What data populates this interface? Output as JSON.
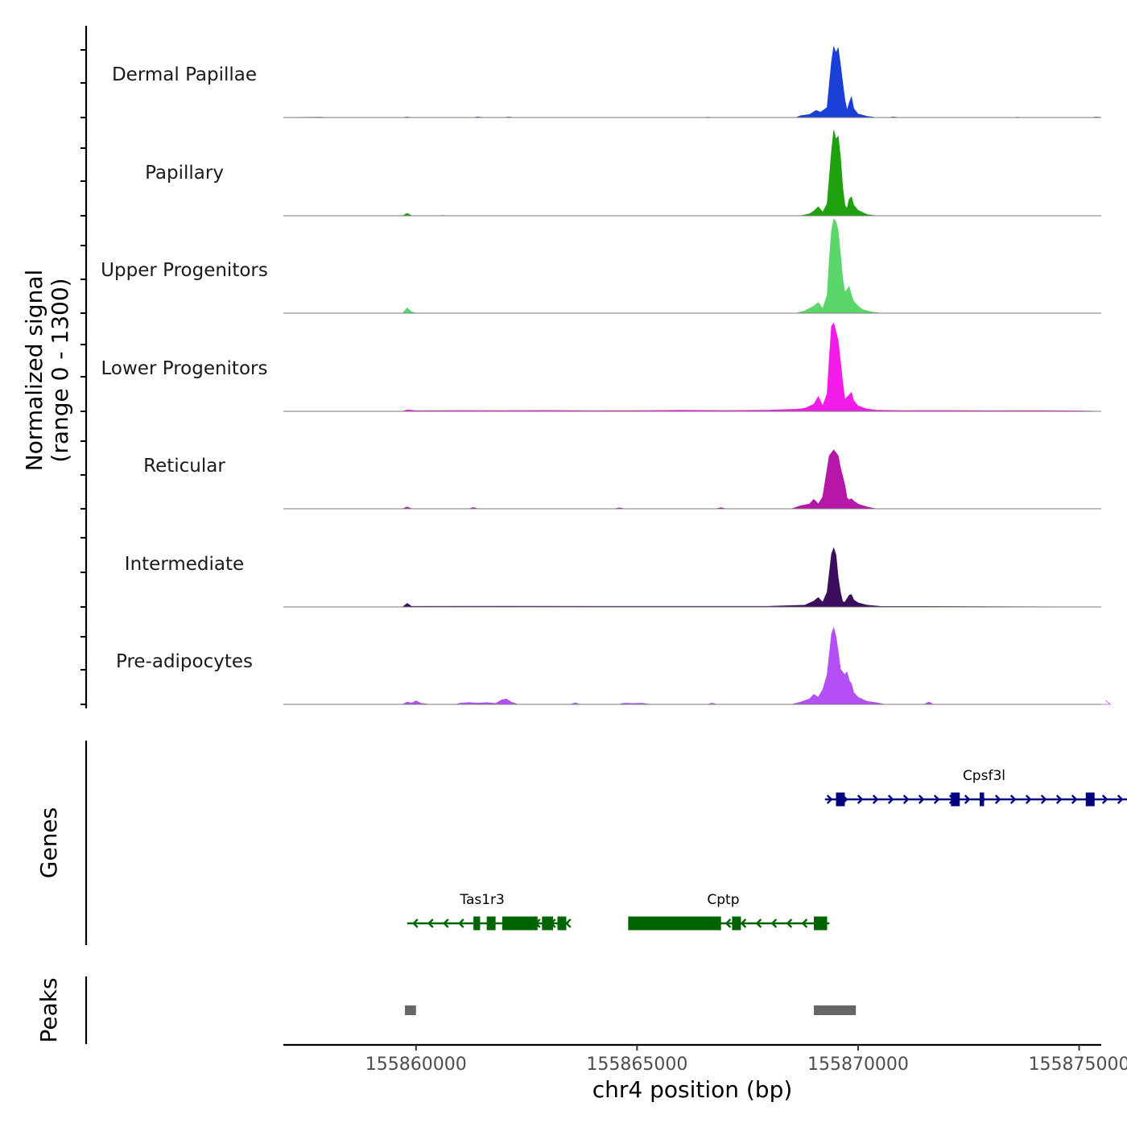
{
  "chart_data": {
    "type": "area",
    "title": "",
    "xlabel": "chr4 position (bp)",
    "xlim": [
      155857000,
      155875500
    ],
    "xticks": [
      155860000,
      155865000,
      155870000,
      155875000
    ],
    "xtick_labels": [
      "155860000",
      "155865000",
      "155870000",
      "155875000"
    ],
    "signal_ylabel_line1": "Normalized signal",
    "signal_ylabel_line2": "(range 0 - 1300)",
    "signal_ylim": [
      0,
      1300
    ],
    "genes_label": "Genes",
    "peaks_label": "Peaks",
    "tracks": [
      {
        "name": "Dermal Papillae",
        "color": "#1a3fd6",
        "points": [
          [
            155857000,
            0
          ],
          [
            155857850,
            5
          ],
          [
            155858000,
            0
          ],
          [
            155859700,
            0
          ],
          [
            155859800,
            8
          ],
          [
            155859900,
            0
          ],
          [
            155861300,
            0
          ],
          [
            155861400,
            10
          ],
          [
            155861500,
            0
          ],
          [
            155862000,
            0
          ],
          [
            155862100,
            8
          ],
          [
            155862200,
            0
          ],
          [
            155866500,
            0
          ],
          [
            155866600,
            6
          ],
          [
            155866700,
            0
          ],
          [
            155868600,
            0
          ],
          [
            155868700,
            30
          ],
          [
            155868900,
            50
          ],
          [
            155869050,
            120
          ],
          [
            155869150,
            90
          ],
          [
            155869300,
            170
          ],
          [
            155869400,
            950
          ],
          [
            155869450,
            1200
          ],
          [
            155869500,
            1100
          ],
          [
            155869550,
            1180
          ],
          [
            155869600,
            900
          ],
          [
            155869650,
            600
          ],
          [
            155869700,
            300
          ],
          [
            155869750,
            120
          ],
          [
            155869800,
            250
          ],
          [
            155869850,
            350
          ],
          [
            155869900,
            150
          ],
          [
            155870000,
            60
          ],
          [
            155870200,
            20
          ],
          [
            155870400,
            0
          ],
          [
            155870700,
            0
          ],
          [
            155870800,
            10
          ],
          [
            155870900,
            0
          ],
          [
            155873500,
            0
          ],
          [
            155873600,
            6
          ],
          [
            155873700,
            0
          ],
          [
            155875300,
            0
          ],
          [
            155875400,
            8
          ],
          [
            155875500,
            0
          ]
        ]
      },
      {
        "name": "Papillary",
        "color": "#1fa00f",
        "points": [
          [
            155857000,
            0
          ],
          [
            155859700,
            0
          ],
          [
            155859800,
            40
          ],
          [
            155859900,
            0
          ],
          [
            155860500,
            0
          ],
          [
            155860600,
            6
          ],
          [
            155860700,
            0
          ],
          [
            155868700,
            0
          ],
          [
            155868900,
            30
          ],
          [
            155869000,
            80
          ],
          [
            155869100,
            150
          ],
          [
            155869200,
            60
          ],
          [
            155869300,
            200
          ],
          [
            155869400,
            1100
          ],
          [
            155869450,
            1450
          ],
          [
            155869500,
            1300
          ],
          [
            155869550,
            1350
          ],
          [
            155869600,
            1000
          ],
          [
            155869650,
            500
          ],
          [
            155869700,
            180
          ],
          [
            155869750,
            120
          ],
          [
            155869800,
            280
          ],
          [
            155869850,
            320
          ],
          [
            155869900,
            180
          ],
          [
            155870000,
            90
          ],
          [
            155870200,
            20
          ],
          [
            155870400,
            0
          ],
          [
            155875500,
            0
          ]
        ]
      },
      {
        "name": "Upper Progenitors",
        "color": "#5bd66b",
        "points": [
          [
            155857000,
            0
          ],
          [
            155859700,
            0
          ],
          [
            155859800,
            90
          ],
          [
            155859900,
            20
          ],
          [
            155860000,
            0
          ],
          [
            155868600,
            0
          ],
          [
            155868800,
            40
          ],
          [
            155869000,
            120
          ],
          [
            155869100,
            180
          ],
          [
            155869200,
            80
          ],
          [
            155869300,
            300
          ],
          [
            155869350,
            900
          ],
          [
            155869400,
            1400
          ],
          [
            155869450,
            1600
          ],
          [
            155869500,
            1550
          ],
          [
            155869550,
            1400
          ],
          [
            155869600,
            1000
          ],
          [
            155869650,
            600
          ],
          [
            155869700,
            350
          ],
          [
            155869800,
            450
          ],
          [
            155869850,
            300
          ],
          [
            155869900,
            200
          ],
          [
            155870000,
            120
          ],
          [
            155870100,
            60
          ],
          [
            155870300,
            20
          ],
          [
            155870500,
            0
          ],
          [
            155875500,
            0
          ]
        ]
      },
      {
        "name": "Lower Progenitors",
        "color": "#f21be8",
        "points": [
          [
            155857000,
            0
          ],
          [
            155859700,
            0
          ],
          [
            155859800,
            25
          ],
          [
            155860000,
            10
          ],
          [
            155861000,
            14
          ],
          [
            155862000,
            12
          ],
          [
            155863000,
            15
          ],
          [
            155864000,
            10
          ],
          [
            155865000,
            12
          ],
          [
            155866000,
            18
          ],
          [
            155867000,
            14
          ],
          [
            155868000,
            20
          ],
          [
            155868600,
            35
          ],
          [
            155868800,
            50
          ],
          [
            155869000,
            120
          ],
          [
            155869100,
            250
          ],
          [
            155869200,
            90
          ],
          [
            155869300,
            300
          ],
          [
            155869350,
            900
          ],
          [
            155869400,
            1450
          ],
          [
            155869450,
            1500
          ],
          [
            155869500,
            1350
          ],
          [
            155869550,
            1200
          ],
          [
            155869600,
            850
          ],
          [
            155869650,
            500
          ],
          [
            155869700,
            200
          ],
          [
            155869800,
            280
          ],
          [
            155869850,
            320
          ],
          [
            155869900,
            180
          ],
          [
            155870000,
            90
          ],
          [
            155870200,
            40
          ],
          [
            155870400,
            20
          ],
          [
            155871000,
            12
          ],
          [
            155872000,
            14
          ],
          [
            155873000,
            10
          ],
          [
            155874000,
            12
          ],
          [
            155875000,
            8
          ],
          [
            155875500,
            0
          ]
        ]
      },
      {
        "name": "Reticular",
        "color": "#b617a8",
        "points": [
          [
            155857000,
            0
          ],
          [
            155859700,
            0
          ],
          [
            155859800,
            30
          ],
          [
            155859900,
            0
          ],
          [
            155861200,
            0
          ],
          [
            155861300,
            20
          ],
          [
            155861400,
            0
          ],
          [
            155864500,
            0
          ],
          [
            155864600,
            15
          ],
          [
            155864700,
            0
          ],
          [
            155866800,
            0
          ],
          [
            155866900,
            18
          ],
          [
            155867000,
            0
          ],
          [
            155868500,
            0
          ],
          [
            155868700,
            50
          ],
          [
            155868900,
            80
          ],
          [
            155869000,
            160
          ],
          [
            155869100,
            80
          ],
          [
            155869200,
            200
          ],
          [
            155869350,
            900
          ],
          [
            155869450,
            1000
          ],
          [
            155869500,
            950
          ],
          [
            155869550,
            900
          ],
          [
            155869600,
            700
          ],
          [
            155869700,
            400
          ],
          [
            155869750,
            180
          ],
          [
            155869800,
            150
          ],
          [
            155869850,
            170
          ],
          [
            155869900,
            130
          ],
          [
            155870000,
            80
          ],
          [
            155870200,
            30
          ],
          [
            155870400,
            0
          ],
          [
            155875500,
            0
          ]
        ]
      },
      {
        "name": "Intermediate",
        "color": "#3a0e5c",
        "points": [
          [
            155857000,
            0
          ],
          [
            155859700,
            0
          ],
          [
            155859800,
            60
          ],
          [
            155859900,
            10
          ],
          [
            155860000,
            10
          ],
          [
            155862000,
            12
          ],
          [
            155864000,
            10
          ],
          [
            155866000,
            10
          ],
          [
            155868000,
            12
          ],
          [
            155868800,
            30
          ],
          [
            155869000,
            100
          ],
          [
            155869100,
            160
          ],
          [
            155869200,
            80
          ],
          [
            155869300,
            250
          ],
          [
            155869400,
            900
          ],
          [
            155869450,
            1000
          ],
          [
            155869500,
            880
          ],
          [
            155869550,
            500
          ],
          [
            155869600,
            250
          ],
          [
            155869650,
            90
          ],
          [
            155869700,
            80
          ],
          [
            155869800,
            200
          ],
          [
            155869850,
            210
          ],
          [
            155869900,
            120
          ],
          [
            155870000,
            70
          ],
          [
            155870200,
            30
          ],
          [
            155870500,
            10
          ],
          [
            155875500,
            0
          ]
        ]
      },
      {
        "name": "Pre-adipocytes",
        "color": "#b34ff5",
        "points": [
          [
            155857000,
            0
          ],
          [
            155859700,
            0
          ],
          [
            155859800,
            40
          ],
          [
            155859900,
            20
          ],
          [
            155860000,
            60
          ],
          [
            155860100,
            20
          ],
          [
            155860300,
            0
          ],
          [
            155860900,
            0
          ],
          [
            155861000,
            20
          ],
          [
            155861200,
            30
          ],
          [
            155861400,
            20
          ],
          [
            155861600,
            30
          ],
          [
            155861800,
            15
          ],
          [
            155861950,
            80
          ],
          [
            155862050,
            90
          ],
          [
            155862150,
            40
          ],
          [
            155862300,
            0
          ],
          [
            155863500,
            0
          ],
          [
            155863600,
            25
          ],
          [
            155863700,
            0
          ],
          [
            155864600,
            0
          ],
          [
            155864700,
            20
          ],
          [
            155864900,
            15
          ],
          [
            155865100,
            20
          ],
          [
            155865300,
            0
          ],
          [
            155866600,
            0
          ],
          [
            155866700,
            20
          ],
          [
            155866800,
            0
          ],
          [
            155868500,
            0
          ],
          [
            155868700,
            40
          ],
          [
            155868900,
            90
          ],
          [
            155869000,
            170
          ],
          [
            155869100,
            120
          ],
          [
            155869200,
            250
          ],
          [
            155869300,
            500
          ],
          [
            155869400,
            1200
          ],
          [
            155869450,
            1300
          ],
          [
            155869500,
            1150
          ],
          [
            155869550,
            900
          ],
          [
            155869600,
            600
          ],
          [
            155869700,
            500
          ],
          [
            155869750,
            550
          ],
          [
            155869800,
            400
          ],
          [
            155869850,
            350
          ],
          [
            155869900,
            200
          ],
          [
            155870000,
            120
          ],
          [
            155870200,
            50
          ],
          [
            155870400,
            30
          ],
          [
            155870600,
            0
          ],
          [
            155871500,
            0
          ],
          [
            155871600,
            40
          ],
          [
            155871700,
            0
          ],
          [
            155875500,
            0
          ],
          [
            155875700,
            0
          ],
          [
            155875600,
            70
          ],
          [
            155875700,
            0
          ]
        ]
      }
    ],
    "genes": [
      {
        "name": "Cpsf3l",
        "strand": "+",
        "color": "#000080",
        "row": 0,
        "start": 155869250,
        "end": 155876500,
        "label_pos": 155872850,
        "exons": [
          [
            155869500,
            155869700
          ],
          [
            155872100,
            155872300
          ],
          [
            155872750,
            155872850
          ],
          [
            155875150,
            155875350
          ]
        ]
      },
      {
        "name": "Tas1r3",
        "strand": "-",
        "color": "#006400",
        "row": 1,
        "start": 155859800,
        "end": 155863450,
        "label_pos": 155861500,
        "exons": [
          [
            155861300,
            155861450
          ],
          [
            155861600,
            155861800
          ],
          [
            155861950,
            155862750
          ],
          [
            155862850,
            155863100
          ],
          [
            155863200,
            155863400
          ]
        ]
      },
      {
        "name": "Cptp",
        "strand": "-",
        "color": "#006400",
        "row": 1,
        "start": 155864800,
        "end": 155869350,
        "label_pos": 155866950,
        "exons": [
          [
            155864800,
            155866900
          ],
          [
            155867150,
            155867350
          ],
          [
            155869000,
            155869300
          ]
        ]
      }
    ],
    "peaks": [
      [
        155859750,
        155860000
      ],
      [
        155869000,
        155869950
      ]
    ]
  }
}
